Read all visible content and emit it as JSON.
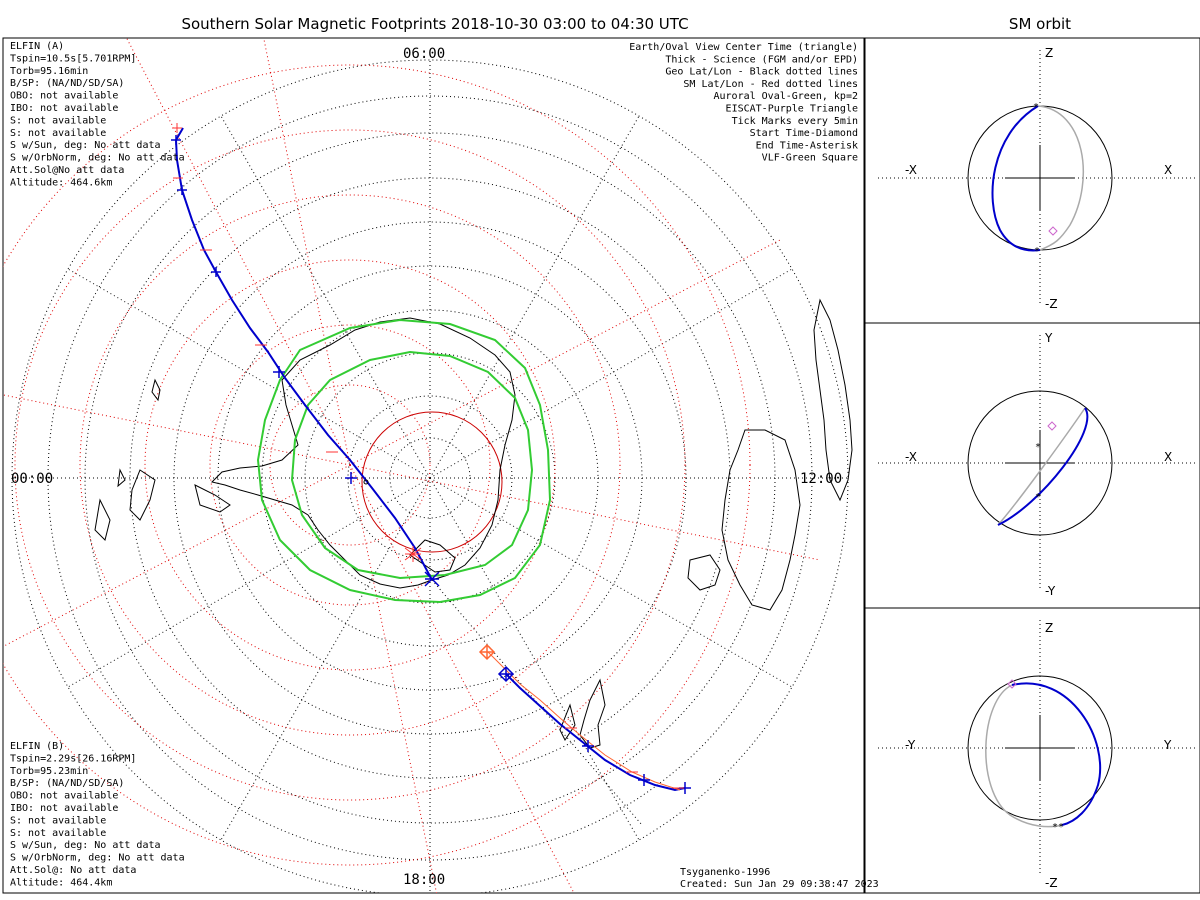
{
  "chart_data": {
    "type": "polar-map",
    "title": "Southern Solar Magnetic Footprints 2018-10-30 03:00 to 04:30 UTC",
    "orbit_title": "SM orbit",
    "time_labels": {
      "top": "06:00",
      "left": "00:00",
      "right": "12:00",
      "bottom": "18:00"
    },
    "legend": [
      {
        "text": "Earth/Oval View Center Time (triangle)",
        "color": "#000000"
      },
      {
        "text": "Thick - Science (FGM and/or EPD)",
        "color": "#000000"
      },
      {
        "text": "Geo Lat/Lon - Black dotted lines",
        "color": "#000000"
      },
      {
        "text": "SM Lat/Lon - Red dotted lines",
        "color": "#e00000"
      },
      {
        "text": "Auroral Oval-Green, kp=2",
        "color": "#33cc33"
      },
      {
        "text": "EISCAT-Purple Triangle",
        "color": "#cc66cc"
      },
      {
        "text": "Tick Marks every 5min",
        "color": "#000000"
      },
      {
        "text": "Start Time-Diamond",
        "color": "#000000"
      },
      {
        "text": "End Time-Asterisk",
        "color": "#000000"
      },
      {
        "text": "VLF-Green Square",
        "color": "#33cc33"
      }
    ],
    "probe_a": {
      "lines": [
        "ELFIN (A)",
        "Tspin=10.5s[5.701RPM]",
        "Torb=95.16min",
        "B/SP: (NA/ND/SD/SA)",
        "OBO: not available",
        "IBO: not available",
        "S: not available",
        "S: not available",
        "S w/Sun, deg: No att data",
        "S w/OrbNorm, deg: No att data",
        "Att.Sol@No att data",
        "Altitude: 464.6km"
      ],
      "color": "#0000cc"
    },
    "probe_b": {
      "lines": [
        "ELFIN (B)",
        "Tspin=2.29s[26.16RPM]",
        "Torb=95.23min",
        "B/SP: (NA/ND/SD/SA)",
        "OBO: not available",
        "IBO: not available",
        "S: not available",
        "S: not available",
        "S w/Sun, deg: No att data",
        "S w/OrbNorm, deg: No att data",
        "Att.Sol@: No att data",
        "Altitude: 464.4km"
      ],
      "color": "#ff6633"
    },
    "credits": [
      "Tsyganenko-1996",
      "Created: Sun Jan 29 09:38:47 2023"
    ],
    "orbit_panels": [
      {
        "left": "-X",
        "right": "X",
        "top": "Z",
        "bottom": "-Z"
      },
      {
        "left": "-X",
        "right": "X",
        "top": "Y",
        "bottom": "-Y"
      },
      {
        "left": "-Y",
        "right": "Y",
        "top": "Z",
        "bottom": "-Z"
      }
    ],
    "colors": {
      "orbit_a": "#0000cc",
      "orbit_b": "#ff6633",
      "oval": "#33cc33",
      "sm_grid": "#e00000",
      "orbit_ref": "#aaaaaa"
    }
  }
}
